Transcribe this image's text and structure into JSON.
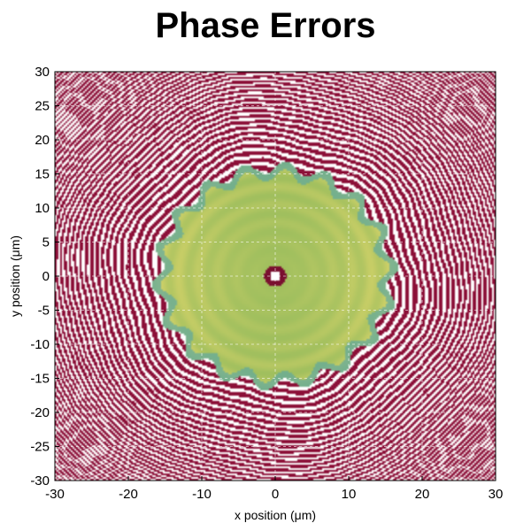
{
  "chart_data": {
    "type": "heatmap",
    "title": "Phase Errors",
    "xlabel": "x position (μm)",
    "ylabel": "y position (μm)",
    "xlim": [
      -30,
      30
    ],
    "ylim": [
      -30,
      30
    ],
    "xticks": [
      -30,
      -20,
      -10,
      0,
      10,
      20,
      30
    ],
    "yticks": [
      -30,
      -25,
      -20,
      -15,
      -10,
      -5,
      0,
      5,
      10,
      15,
      20,
      25,
      30
    ],
    "grid": true,
    "colors": {
      "outer_stripes": "#8c1038",
      "background": "#ffffff",
      "inner_green": "#8db85a",
      "inner_yellow": "#d8d46a",
      "ring_teal": "#5fa8a0",
      "center_dark": "#7a1030"
    },
    "features": {
      "central_disk_radius": 16,
      "center_spot_radius": 1.5
    }
  }
}
